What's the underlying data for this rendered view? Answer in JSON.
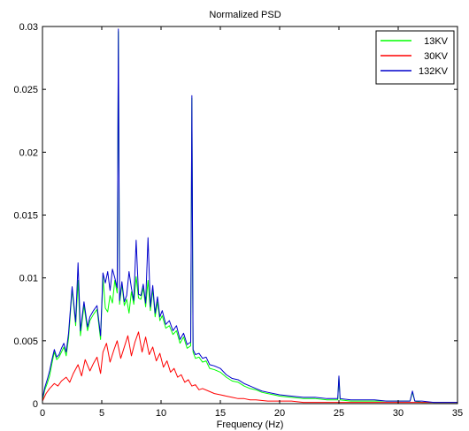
{
  "chart_data": {
    "type": "line",
    "title": "Normalized PSD",
    "xlabel": "Frequency (Hz)",
    "ylabel": "",
    "xlim": [
      0,
      35
    ],
    "ylim": [
      0,
      0.03
    ],
    "xticks": [
      0,
      5,
      10,
      15,
      20,
      25,
      30,
      35
    ],
    "xtick_labels": [
      "0",
      "5",
      "10",
      "15",
      "20",
      "25",
      "30",
      "35"
    ],
    "yticks": [
      0,
      0.005,
      0.01,
      0.015,
      0.02,
      0.025,
      0.03
    ],
    "ytick_labels": [
      "0",
      "0.005",
      "0.01",
      "0.015",
      "0.02",
      "0.025",
      "0.03"
    ],
    "grid": false,
    "legend_position": "top-right",
    "series": [
      {
        "name": "13KV",
        "color": "#00ff00",
        "x": [
          0,
          0.2,
          0.4,
          0.6,
          0.8,
          1.0,
          1.2,
          1.4,
          1.6,
          1.8,
          2.0,
          2.2,
          2.5,
          2.8,
          3.0,
          3.2,
          3.5,
          3.8,
          4.0,
          4.3,
          4.6,
          4.9,
          5.1,
          5.3,
          5.5,
          5.7,
          5.9,
          6.1,
          6.3,
          6.4,
          6.5,
          6.7,
          6.9,
          7.1,
          7.3,
          7.5,
          7.7,
          7.9,
          8.1,
          8.3,
          8.5,
          8.7,
          8.9,
          9.1,
          9.3,
          9.5,
          9.7,
          9.9,
          10.1,
          10.4,
          10.7,
          11.0,
          11.3,
          11.6,
          11.9,
          12.2,
          12.5,
          12.6,
          12.7,
          12.9,
          13.2,
          13.5,
          13.8,
          14.1,
          14.5,
          15.0,
          15.5,
          16.0,
          16.5,
          17.0,
          17.5,
          18.0,
          18.5,
          19.0,
          19.5,
          20.0,
          21.0,
          22.0,
          23.0,
          24.0,
          24.9,
          25.0,
          25.1,
          26.0,
          27.0,
          28.0,
          29.0,
          30.0,
          31.0,
          31.2,
          31.4,
          32.0,
          33.0,
          34.0,
          35.0
        ],
        "values": [
          0.0003,
          0.0011,
          0.0016,
          0.0022,
          0.0032,
          0.0041,
          0.0035,
          0.0037,
          0.0041,
          0.0045,
          0.0038,
          0.0052,
          0.0091,
          0.0062,
          0.0098,
          0.0054,
          0.0078,
          0.0058,
          0.0066,
          0.0071,
          0.0075,
          0.0051,
          0.0101,
          0.0076,
          0.0073,
          0.0086,
          0.008,
          0.0098,
          0.0088,
          0.0296,
          0.0079,
          0.0095,
          0.0078,
          0.0083,
          0.0072,
          0.0089,
          0.0079,
          0.0101,
          0.0084,
          0.0083,
          0.0092,
          0.0077,
          0.0098,
          0.0074,
          0.0091,
          0.0069,
          0.0081,
          0.0066,
          0.007,
          0.006,
          0.0062,
          0.0055,
          0.0058,
          0.0048,
          0.0053,
          0.0044,
          0.0046,
          0.0243,
          0.0041,
          0.0036,
          0.0037,
          0.0033,
          0.0034,
          0.0028,
          0.0027,
          0.0025,
          0.0021,
          0.0018,
          0.0017,
          0.0014,
          0.0012,
          0.0011,
          0.0009,
          0.0008,
          0.0007,
          0.0006,
          0.0005,
          0.0004,
          0.0004,
          0.0003,
          0.0003,
          0.0021,
          0.0003,
          0.0002,
          0.0002,
          0.0002,
          0.0002,
          0.0002,
          0.0002,
          0.0009,
          0.0002,
          0.0001,
          0.0001,
          0.0001,
          0.0001
        ]
      },
      {
        "name": "30KV",
        "color": "#ff0000",
        "x": [
          0,
          0.3,
          0.6,
          1.0,
          1.3,
          1.6,
          2.0,
          2.3,
          2.6,
          3.0,
          3.3,
          3.6,
          4.0,
          4.3,
          4.6,
          4.9,
          5.1,
          5.4,
          5.7,
          6.0,
          6.3,
          6.6,
          6.9,
          7.2,
          7.5,
          7.8,
          8.1,
          8.4,
          8.7,
          9.0,
          9.3,
          9.6,
          9.9,
          10.2,
          10.5,
          10.8,
          11.1,
          11.4,
          11.7,
          12.0,
          12.3,
          12.6,
          12.9,
          13.2,
          13.5,
          14.0,
          14.5,
          15.0,
          15.5,
          16.0,
          16.5,
          17.0,
          17.5,
          18.0,
          19.0,
          20.0,
          21.0,
          22.0,
          23.0,
          24.0,
          25.0,
          26.0,
          27.0,
          28.0,
          29.0,
          30.0,
          31.0,
          32.0,
          33.0,
          34.0,
          35.0
        ],
        "values": [
          0.0002,
          0.0008,
          0.0012,
          0.0016,
          0.0014,
          0.0018,
          0.0021,
          0.0017,
          0.0024,
          0.0031,
          0.0022,
          0.0035,
          0.0026,
          0.0032,
          0.0037,
          0.0024,
          0.0041,
          0.0048,
          0.0033,
          0.0042,
          0.005,
          0.0036,
          0.0045,
          0.0054,
          0.0038,
          0.0049,
          0.0057,
          0.0041,
          0.0053,
          0.0039,
          0.0045,
          0.0034,
          0.004,
          0.0029,
          0.0034,
          0.0025,
          0.0028,
          0.0021,
          0.0023,
          0.0017,
          0.0019,
          0.0014,
          0.0015,
          0.0011,
          0.0012,
          0.001,
          0.0008,
          0.0007,
          0.0006,
          0.0005,
          0.0004,
          0.0004,
          0.0003,
          0.0003,
          0.0002,
          0.0002,
          0.0002,
          0.0001,
          0.0001,
          0.0001,
          0.0001,
          0.0001,
          0.0001,
          0.0001,
          0.0001,
          0.0001,
          0.0001,
          0.0001,
          0.0001,
          0.0001,
          0.0001
        ]
      },
      {
        "name": "132KV",
        "color": "#0000cc",
        "x": [
          0,
          0.2,
          0.4,
          0.6,
          0.8,
          1.0,
          1.2,
          1.4,
          1.6,
          1.8,
          2.0,
          2.2,
          2.5,
          2.8,
          3.0,
          3.2,
          3.5,
          3.8,
          4.0,
          4.3,
          4.6,
          4.9,
          5.1,
          5.3,
          5.5,
          5.7,
          5.9,
          6.1,
          6.3,
          6.4,
          6.5,
          6.7,
          6.9,
          7.1,
          7.3,
          7.5,
          7.7,
          7.9,
          8.1,
          8.3,
          8.5,
          8.7,
          8.9,
          9.1,
          9.3,
          9.5,
          9.7,
          9.9,
          10.1,
          10.4,
          10.7,
          11.0,
          11.3,
          11.6,
          11.9,
          12.2,
          12.5,
          12.6,
          12.7,
          12.9,
          13.2,
          13.5,
          13.8,
          14.1,
          14.5,
          15.0,
          15.5,
          16.0,
          16.5,
          17.0,
          17.5,
          18.0,
          18.5,
          19.0,
          19.5,
          20.0,
          21.0,
          22.0,
          23.0,
          24.0,
          24.9,
          25.0,
          25.1,
          26.0,
          27.0,
          28.0,
          29.0,
          30.0,
          31.0,
          31.2,
          31.4,
          32.0,
          33.0,
          34.0,
          35.0
        ],
        "values": [
          0.0004,
          0.0013,
          0.0019,
          0.0026,
          0.0035,
          0.0043,
          0.0037,
          0.0039,
          0.0044,
          0.0048,
          0.0041,
          0.0056,
          0.0093,
          0.0065,
          0.0112,
          0.0058,
          0.0081,
          0.0061,
          0.0069,
          0.0074,
          0.0078,
          0.0054,
          0.0104,
          0.0096,
          0.0105,
          0.009,
          0.0107,
          0.01,
          0.0092,
          0.0298,
          0.0082,
          0.0097,
          0.0081,
          0.0086,
          0.0105,
          0.0092,
          0.0082,
          0.013,
          0.0087,
          0.0086,
          0.0095,
          0.008,
          0.0132,
          0.0077,
          0.0094,
          0.0072,
          0.0085,
          0.0069,
          0.0074,
          0.0063,
          0.0066,
          0.0058,
          0.0062,
          0.0051,
          0.0056,
          0.0047,
          0.0049,
          0.0245,
          0.0043,
          0.0039,
          0.004,
          0.0036,
          0.0037,
          0.0031,
          0.003,
          0.0028,
          0.0023,
          0.002,
          0.0019,
          0.0016,
          0.0014,
          0.0012,
          0.001,
          0.0009,
          0.0008,
          0.0007,
          0.0006,
          0.0005,
          0.0005,
          0.0004,
          0.0004,
          0.0022,
          0.0004,
          0.0003,
          0.0003,
          0.0003,
          0.0002,
          0.0002,
          0.0002,
          0.001,
          0.0002,
          0.0002,
          0.0001,
          0.0001,
          0.0001
        ]
      }
    ]
  }
}
